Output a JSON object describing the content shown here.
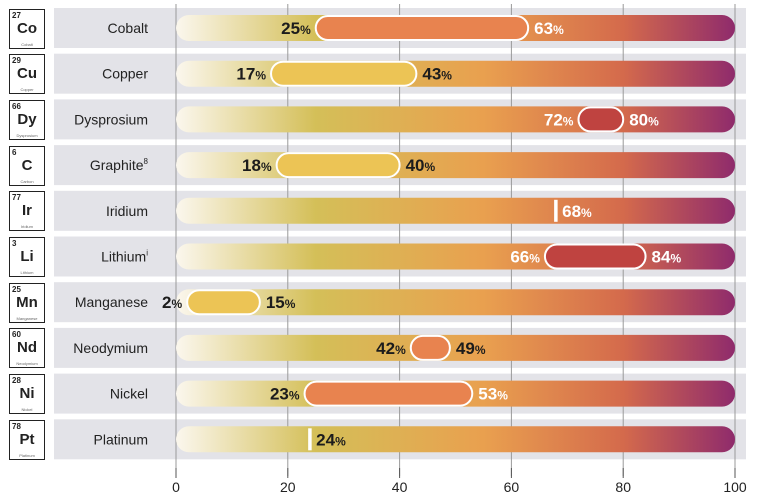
{
  "chart_data": {
    "type": "bar",
    "xlim": [
      0,
      100
    ],
    "xticks": [
      0,
      20,
      40,
      60,
      80,
      100
    ],
    "categories": [
      {
        "name": "Cobalt",
        "footnote": "",
        "atomic_number": "27",
        "symbol": "Co",
        "element_name": "Cobalt",
        "low": 25,
        "high": 63,
        "marker_color": "#e8834f",
        "low_label": "25",
        "high_label": "63"
      },
      {
        "name": "Copper",
        "footnote": "",
        "atomic_number": "29",
        "symbol": "Cu",
        "element_name": "Copper",
        "low": 17,
        "high": 43,
        "marker_color": "#ecc455",
        "low_label": "17",
        "high_label": "43"
      },
      {
        "name": "Dysprosium",
        "footnote": "",
        "atomic_number": "66",
        "symbol": "Dy",
        "element_name": "Dysprosium",
        "low": 72,
        "high": 80,
        "marker_color": "#bf4340",
        "low_label": "72",
        "high_label": "80"
      },
      {
        "name": "Graphite",
        "footnote": "8",
        "atomic_number": "6",
        "symbol": "C",
        "element_name": "Carbon",
        "low": 18,
        "high": 40,
        "marker_color": "#ecc455",
        "low_label": "18",
        "high_label": "40"
      },
      {
        "name": "Iridium",
        "footnote": "",
        "atomic_number": "77",
        "symbol": "Ir",
        "element_name": "Iridium",
        "low": 68,
        "high": 68,
        "marker_color": "#ffffff",
        "low_label": "",
        "high_label": "68"
      },
      {
        "name": "Lithium",
        "footnote": "i",
        "atomic_number": "3",
        "symbol": "Li",
        "element_name": "Lithium",
        "low": 66,
        "high": 84,
        "marker_color": "#bf4340",
        "low_label": "66",
        "high_label": "84"
      },
      {
        "name": "Manganese",
        "footnote": "",
        "atomic_number": "25",
        "symbol": "Mn",
        "element_name": "Manganese",
        "low": 2,
        "high": 15,
        "marker_color": "#ecc455",
        "low_label": "2",
        "high_label": "15"
      },
      {
        "name": "Neodymium",
        "footnote": "",
        "atomic_number": "60",
        "symbol": "Nd",
        "element_name": "Neodymium",
        "low": 42,
        "high": 49,
        "marker_color": "#e8834f",
        "low_label": "42",
        "high_label": "49"
      },
      {
        "name": "Nickel",
        "footnote": "",
        "atomic_number": "28",
        "symbol": "Ni",
        "element_name": "Nickel",
        "low": 23,
        "high": 53,
        "marker_color": "#e8834f",
        "low_label": "23",
        "high_label": "53"
      },
      {
        "name": "Platinum",
        "footnote": "",
        "atomic_number": "78",
        "symbol": "Pt",
        "element_name": "Platinum",
        "low": 24,
        "high": 24,
        "marker_color": "#ffffff",
        "low_label": "",
        "high_label": "24"
      }
    ],
    "colors": {
      "row_band": "#e3e3e8",
      "gradient": [
        "#fbf7ee",
        "#d4bf58",
        "#e9a04f",
        "#d46a4c",
        "#8f2b6c"
      ],
      "label_dark": "#1c1c1c",
      "label_light": "#ffffff",
      "grid": "#9a9a9a"
    },
    "unit": "%"
  }
}
